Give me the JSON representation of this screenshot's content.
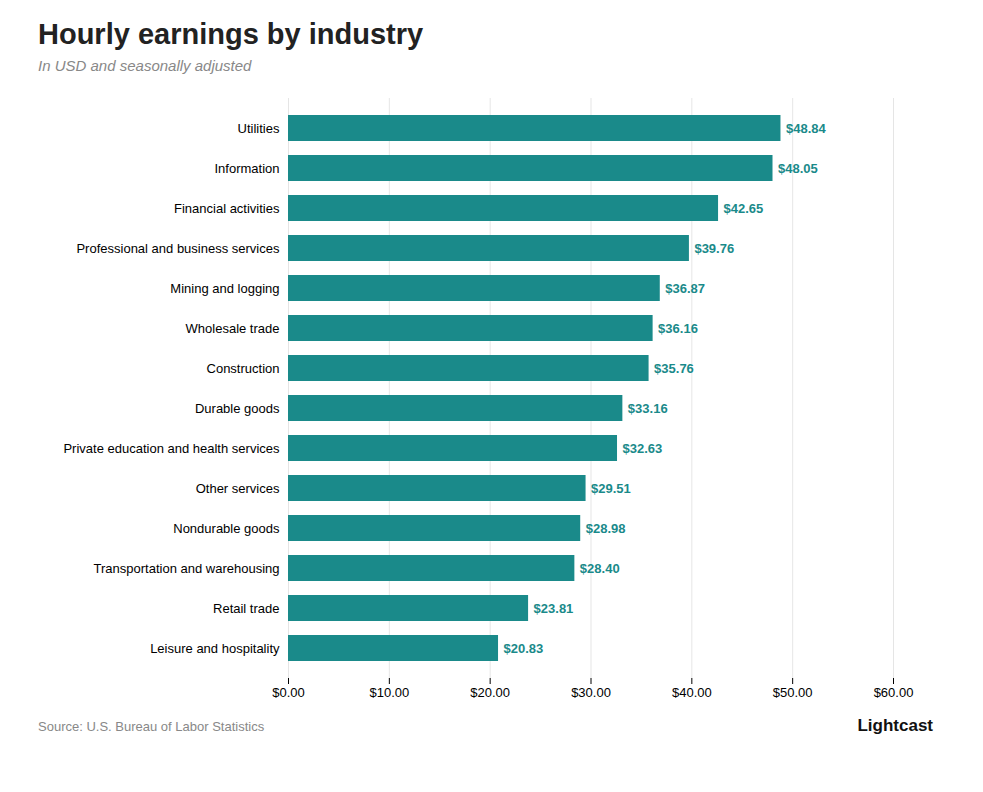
{
  "chart_data": {
    "type": "bar",
    "orientation": "horizontal",
    "title": "Hourly earnings by industry",
    "subtitle": "In USD and seasonally adjusted",
    "source": "Source: U.S. Bureau of Labor Statistics",
    "annotations": [
      "Lightcast"
    ],
    "categories": [
      "Leisure and hospitality",
      "Retail trade",
      "Transportation and warehousing",
      "Nondurable goods",
      "Other services",
      "Private education and health services",
      "Durable goods",
      "Construction",
      "Wholesale trade",
      "Mining and logging",
      "Professional and business services",
      "Financial activities",
      "Information",
      "Utilities"
    ],
    "values": [
      20.83,
      23.81,
      28.4,
      28.98,
      29.51,
      32.63,
      33.16,
      35.76,
      36.16,
      36.87,
      39.76,
      42.65,
      48.05,
      48.84
    ],
    "value_labels": [
      "$20.83",
      "$23.81",
      "$28.40",
      "$28.98",
      "$29.51",
      "$32.63",
      "$33.16",
      "$35.76",
      "$36.16",
      "$36.87",
      "$39.76",
      "$42.65",
      "$48.05",
      "$48.84"
    ],
    "data_labels": true,
    "color": "#1a8a8a",
    "grid": true,
    "xlim": [
      0,
      60
    ],
    "xticks": [
      {
        "value": 0,
        "label": "$0.00"
      },
      {
        "value": 10,
        "label": "$10.00"
      },
      {
        "value": 20,
        "label": "$20.00"
      },
      {
        "value": 30,
        "label": "$30.00"
      },
      {
        "value": 40,
        "label": "$40.00"
      },
      {
        "value": 50,
        "label": "$50.00"
      },
      {
        "value": 60,
        "label": "$60.00"
      }
    ]
  }
}
